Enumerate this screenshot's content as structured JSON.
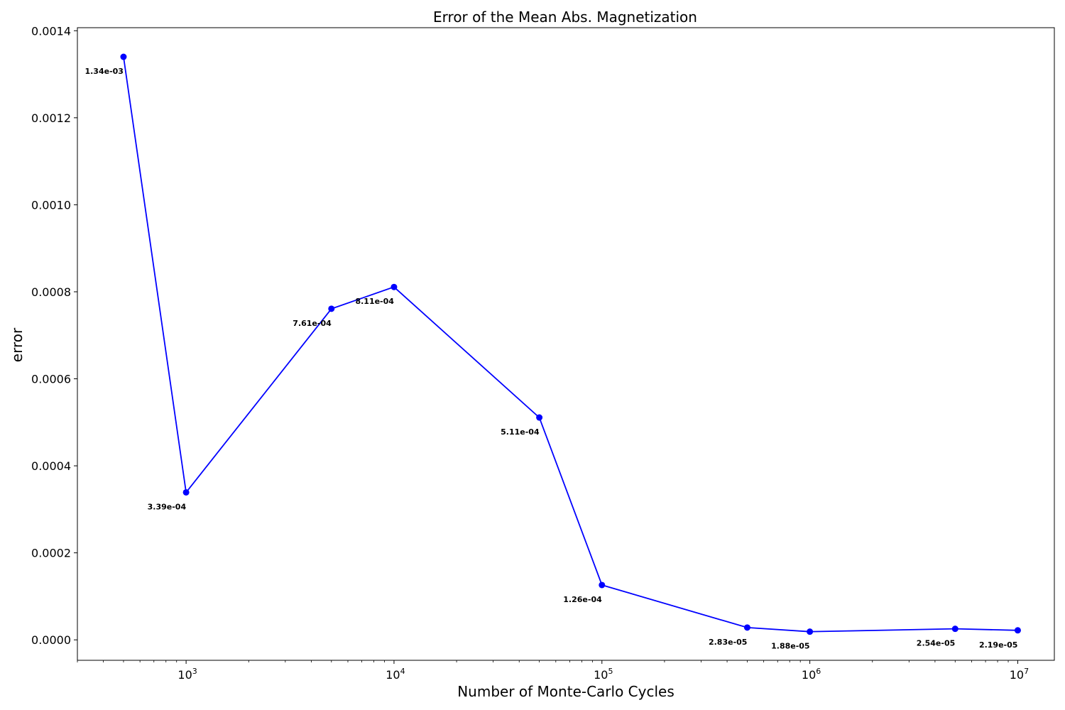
{
  "chart_data": {
    "type": "line",
    "title": "Error of the Mean Abs. Magnetization",
    "xlabel": "Number of Monte-Carlo Cycles",
    "ylabel": "error",
    "xscale": "log",
    "xlim": [
      300,
      15000000
    ],
    "ylim": [
      -4.7e-05,
      0.001407
    ],
    "grid": false,
    "x_ticks": [
      {
        "value": 1000,
        "base": "10",
        "exp": "3"
      },
      {
        "value": 10000,
        "base": "10",
        "exp": "4"
      },
      {
        "value": 100000,
        "base": "10",
        "exp": "5"
      },
      {
        "value": 1000000,
        "base": "10",
        "exp": "6"
      },
      {
        "value": 10000000,
        "base": "10",
        "exp": "7"
      }
    ],
    "y_ticks": [
      {
        "value": 0.0,
        "label": "0.0000"
      },
      {
        "value": 0.0002,
        "label": "0.0002"
      },
      {
        "value": 0.0004,
        "label": "0.0004"
      },
      {
        "value": 0.0006,
        "label": "0.0006"
      },
      {
        "value": 0.0008,
        "label": "0.0008"
      },
      {
        "value": 0.001,
        "label": "0.0010"
      },
      {
        "value": 0.0012,
        "label": "0.0012"
      },
      {
        "value": 0.0014,
        "label": "0.0014"
      }
    ],
    "series": [
      {
        "color": "#0000ff",
        "x": [
          500,
          1000,
          5000,
          10000,
          50000,
          100000,
          500000,
          1000000,
          5000000,
          10000000
        ],
        "y": [
          0.00134,
          0.000339,
          0.000761,
          0.000811,
          0.000511,
          0.000126,
          2.83e-05,
          1.88e-05,
          2.54e-05,
          2.19e-05
        ],
        "labels": [
          "1.34e-03",
          "3.39e-04",
          "7.61e-04",
          "8.11e-04",
          "5.11e-04",
          "1.26e-04",
          "2.83e-05",
          "1.88e-05",
          "2.54e-05",
          "2.19e-05"
        ]
      }
    ]
  }
}
